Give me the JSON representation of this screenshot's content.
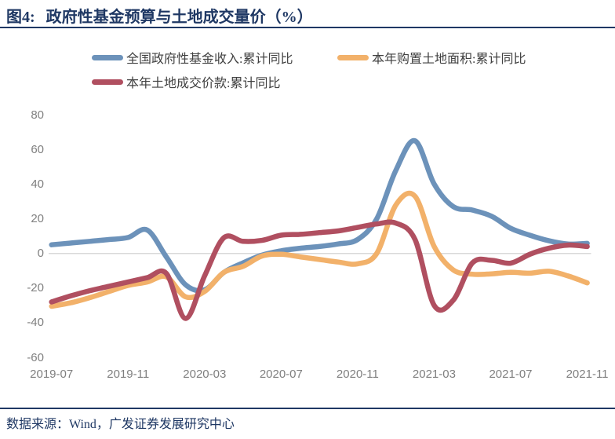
{
  "figure": {
    "label": "图4:",
    "title": "政府性基金预算与土地成交量价（%）"
  },
  "footer": {
    "source": "数据来源：Wind，广发证券发展研究中心"
  },
  "colors": {
    "navy": "#1F3864",
    "axis_text": "#7F7F7F",
    "legend_text": "#404040",
    "gridline": "#D9D9D9",
    "series_blue": "#6C92BA",
    "series_orange": "#F2B16A",
    "series_red": "#B04F60"
  },
  "chart_data": {
    "type": "line",
    "title": "政府性基金预算与土地成交量价（%）",
    "line_style": "smooth",
    "grid": "zero-line-only",
    "legend_position": "top",
    "ylim": [
      -60,
      80
    ],
    "y_ticks": [
      80,
      60,
      40,
      20,
      0,
      -20,
      -40,
      -60
    ],
    "x_tick_labels": [
      "2019-07",
      "2019-11",
      "2020-03",
      "2020-07",
      "2020-11",
      "2021-03",
      "2021-07",
      "2021-11"
    ],
    "categories": [
      "2019-07",
      "2019-08",
      "2019-09",
      "2019-10",
      "2019-11",
      "2019-12",
      "2020-01",
      "2020-02",
      "2020-03",
      "2020-04",
      "2020-05",
      "2020-06",
      "2020-07",
      "2020-08",
      "2020-09",
      "2020-10",
      "2020-11",
      "2020-12",
      "2021-01",
      "2021-02",
      "2021-03",
      "2021-04",
      "2021-05",
      "2021-06",
      "2021-07",
      "2021-08",
      "2021-09",
      "2021-10",
      "2021-11"
    ],
    "series": [
      {
        "name": "全国政府性基金收入:累计同比",
        "color": "#6C92BA",
        "values": [
          5,
          6,
          7,
          8,
          9.2,
          13.5,
          -2,
          -18,
          -21,
          -11,
          -5.5,
          -1,
          1.5,
          3,
          4,
          5.5,
          8,
          20,
          48,
          65,
          40,
          27,
          25,
          21.5,
          14.5,
          10.5,
          7.3,
          5.4,
          5.8
        ]
      },
      {
        "name": "本年购置土地面积:累计同比",
        "color": "#F2B16A",
        "values": [
          -30.5,
          -28.5,
          -25.5,
          -22,
          -18.5,
          -16.5,
          -13.5,
          -25,
          -22,
          -11,
          -7.5,
          -1.5,
          -0.5,
          -2,
          -3.5,
          -5,
          -6,
          0,
          28,
          33,
          4,
          -9.5,
          -12,
          -11.8,
          -10.9,
          -11.4,
          -10.3,
          -13,
          -17
        ]
      },
      {
        "name": "本年土地成交价款:累计同比",
        "color": "#B04F60",
        "values": [
          -28,
          -24.5,
          -21.5,
          -19,
          -16.5,
          -14,
          -11.5,
          -37.5,
          -13,
          9,
          7,
          7.5,
          10.5,
          11,
          12,
          13,
          15,
          17,
          17.5,
          8,
          -30,
          -27,
          -5.5,
          -4,
          -5.6,
          -0.5,
          3,
          4.8,
          4
        ]
      }
    ]
  }
}
